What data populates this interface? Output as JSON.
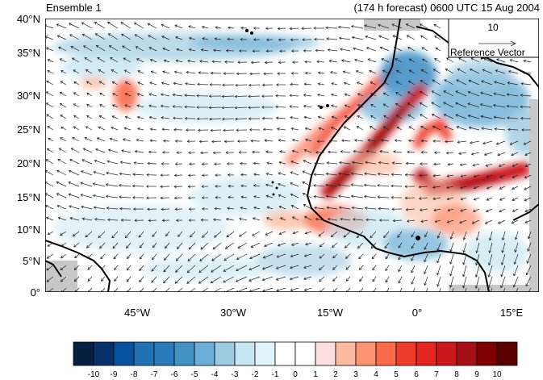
{
  "titles": {
    "left": "Ensemble 1",
    "right": "(174 h forecast) 0600 UTC 15 Aug 2004"
  },
  "reference_vector": {
    "magnitude": "10",
    "label": "Reference Vector"
  },
  "lat_labels": [
    "40°N",
    "35°N",
    "30°N",
    "25°N",
    "20°N",
    "15°N",
    "10°N",
    "5°N",
    "0°"
  ],
  "lon_labels": [
    "45°W",
    "30°W",
    "15°W",
    "0°",
    "15°E"
  ],
  "map": {
    "lon_range": [
      -52,
      20
    ],
    "lat_range": [
      0,
      40
    ],
    "land_color": "#ffffff",
    "missing_color": "#c8c8c8"
  },
  "colorbar": {
    "labels": [
      "-10",
      "-9",
      "-8",
      "-7",
      "-6",
      "-5",
      "-4",
      "-3",
      "-2",
      "-1",
      "0",
      "1",
      "2",
      "3",
      "4",
      "5",
      "6",
      "7",
      "8",
      "9",
      "10"
    ],
    "colors": [
      "#08203f",
      "#08306b",
      "#08519c",
      "#2171b5",
      "#2b7bba",
      "#4292c6",
      "#6baed6",
      "#9ecae1",
      "#c6e6f2",
      "#e1f3fb",
      "#ffffff",
      "#ffffff",
      "#fde0dd",
      "#fcbba1",
      "#fc9272",
      "#fb6a4a",
      "#ef3b2c",
      "#e3261f",
      "#cb181d",
      "#a50f15",
      "#7f0000",
      "#5a0000"
    ]
  }
}
